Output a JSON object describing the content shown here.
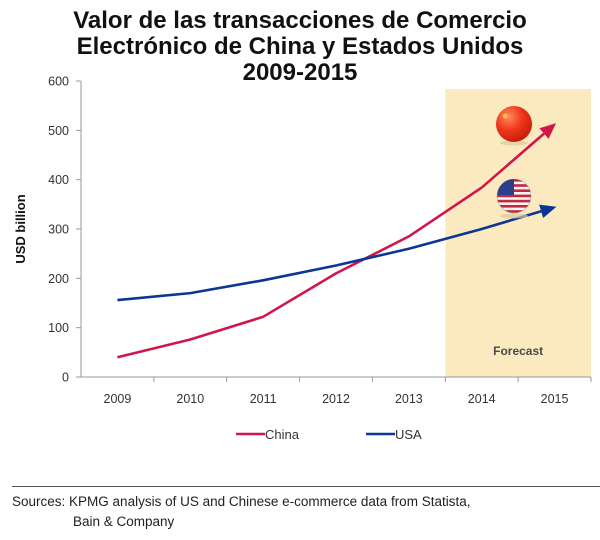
{
  "chart_data": {
    "type": "line",
    "title": [
      "Valor de las transacciones de Comercio",
      "Electrónico de China y Estados Unidos",
      "2009-2015"
    ],
    "xlabel": "",
    "ylabel": "USD billion",
    "categories": [
      "2009",
      "2010",
      "2011",
      "2012",
      "2013",
      "2014",
      "2015"
    ],
    "ylim": [
      0,
      600
    ],
    "yticks": [
      0,
      100,
      200,
      300,
      400,
      500,
      600
    ],
    "grid": false,
    "series": [
      {
        "name": "China",
        "color": "#d0164a",
        "values": [
          40,
          76,
          122,
          210,
          285,
          384,
          512
        ],
        "forecast_from": "2014",
        "end_arrow": true,
        "marker_icon": "china-flag-sphere-icon"
      },
      {
        "name": "USA",
        "color": "#0b3694",
        "values": [
          156,
          170,
          196,
          226,
          260,
          300,
          344
        ],
        "forecast_from": "2014",
        "end_arrow": true,
        "marker_icon": "usa-flag-sphere-icon"
      }
    ],
    "forecast_region": {
      "label": "Forecast",
      "from": "2014",
      "to": "2015",
      "color": "#fbe9c0"
    },
    "legend": {
      "placement": "bottom",
      "entries": [
        "China",
        "USA"
      ]
    }
  },
  "footer": {
    "sources_label": "Sources:",
    "sources_line1": "KPMG analysis of US and Chinese e-commerce data from Statista,",
    "sources_line2": "Bain & Company"
  }
}
